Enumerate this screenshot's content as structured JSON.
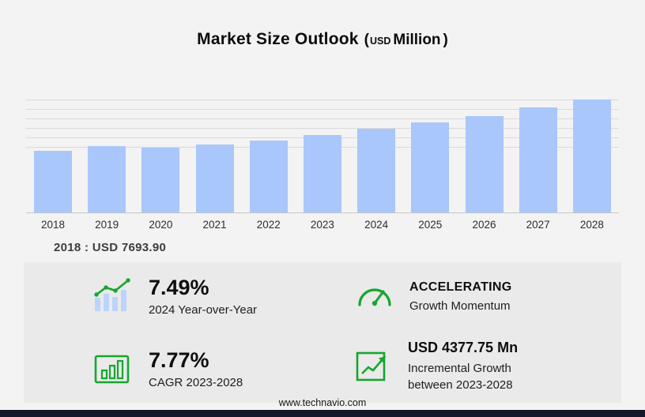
{
  "header": {
    "title": "Market Size Outlook",
    "unit_paren_open": "(",
    "unit_currency": "USD",
    "unit_label": "Million",
    "unit_paren_close": ")"
  },
  "chart_data": {
    "type": "bar",
    "title": "Market Size Outlook",
    "unit": "USD Million",
    "categories": [
      "2018",
      "2019",
      "2020",
      "2021",
      "2022",
      "2023",
      "2024",
      "2025",
      "2026",
      "2027",
      "2028"
    ],
    "values": [
      7693.9,
      8190,
      8060,
      8440,
      8900,
      9645,
      10370,
      11150,
      12005,
      13030,
      14020
    ],
    "annotation": "2018 : USD 7693.90",
    "ylim": [
      0,
      14500
    ],
    "grid": "horizontal-top-band",
    "legend": "none",
    "bar_color": "#a9c7fa"
  },
  "stats": {
    "yoy": {
      "value": "7.49%",
      "label": "2024 Year-over-Year",
      "icon": "bar-chart-trend-icon"
    },
    "momentum": {
      "value": "ACCELERATING",
      "label": "Growth Momentum",
      "icon": "speedometer-icon"
    },
    "cagr": {
      "value": "7.77%",
      "label": "CAGR 2023-2028",
      "icon": "chart-window-bars-icon"
    },
    "incremental": {
      "value": "USD 4377.75 Mn",
      "label_line1": "Incremental Growth",
      "label_line2": "between 2023-2028",
      "icon": "growth-arrow-icon"
    }
  },
  "footer": {
    "website": "www.technavio.com"
  },
  "colors": {
    "bar_fill": "#a9c7fa",
    "accent_green": "#16a62e",
    "panel_bg": "#eaeaea",
    "page_bg": "#f3f3f3",
    "footer_bar": "#17172b"
  }
}
